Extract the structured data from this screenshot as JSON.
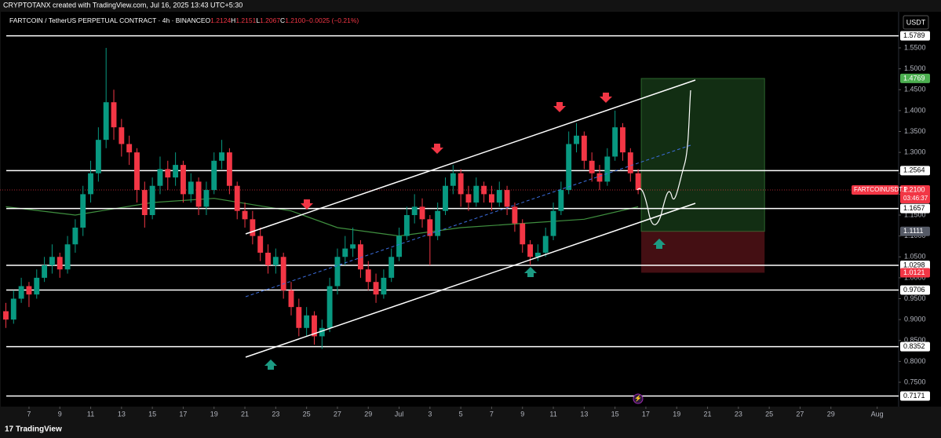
{
  "chart_data": {
    "type": "candlestick",
    "attribution": "CRYPTOTANX created with TradingView.com, Jul 16, 2025 13:43 UTC+5:30",
    "title": "FARTCOIN / TetherUS PERPETUAL CONTRACT · 4h · BINANCE",
    "readout": [
      {
        "key": "O",
        "value": 1.2124
      },
      {
        "key": "H",
        "value": 1.2151
      },
      {
        "key": "L",
        "value": 1.2067
      },
      {
        "key": "C",
        "value": 1.21,
        "value_label": "1.2100"
      },
      {
        "value": -0.0025,
        "value_label": "−0.0025 (−0.21%)"
      }
    ],
    "currency": "USDT",
    "logo": "TradingView",
    "up_color": "#089981",
    "down_color": "#f23645",
    "xlim": [
      -1.88,
      56.39
    ],
    "ylim": [
      0.6918,
      1.6364
    ],
    "xticks": [
      {
        "value": 0,
        "label": "7"
      },
      {
        "value": 2,
        "label": "9"
      },
      {
        "value": 4,
        "label": "11"
      },
      {
        "value": 6,
        "label": "13"
      },
      {
        "value": 8,
        "label": "15"
      },
      {
        "value": 10,
        "label": "17"
      },
      {
        "value": 12,
        "label": "19"
      },
      {
        "value": 14,
        "label": "21"
      },
      {
        "value": 16,
        "label": "23"
      },
      {
        "value": 18,
        "label": "25"
      },
      {
        "value": 20,
        "label": "27"
      },
      {
        "value": 22,
        "label": "29"
      },
      {
        "value": 24,
        "label": "Jul"
      },
      {
        "value": 26,
        "label": "3"
      },
      {
        "value": 28,
        "label": "5"
      },
      {
        "value": 30,
        "label": "7"
      },
      {
        "value": 32,
        "label": "9"
      },
      {
        "value": 34,
        "label": "11"
      },
      {
        "value": 36,
        "label": "13"
      },
      {
        "value": 38,
        "label": "15"
      },
      {
        "value": 40,
        "label": "17"
      },
      {
        "value": 42,
        "label": "19"
      },
      {
        "value": 44,
        "label": "21"
      },
      {
        "value": 46,
        "label": "23"
      },
      {
        "value": 48,
        "label": "25"
      },
      {
        "value": 50,
        "label": "27"
      },
      {
        "value": 52,
        "label": "29"
      },
      {
        "value": 55,
        "label": "Aug"
      }
    ],
    "yticks": [
      {
        "value": 0.75,
        "label": "0.7500"
      },
      {
        "value": 0.8,
        "label": "0.8000"
      },
      {
        "value": 0.85,
        "label": "0.8500"
      },
      {
        "value": 0.9,
        "label": "0.9000"
      },
      {
        "value": 0.95,
        "label": "0.9500"
      },
      {
        "value": 1.0,
        "label": "1.0000"
      },
      {
        "value": 1.05,
        "label": "1.0500"
      },
      {
        "value": 1.1,
        "label": "1.1000"
      },
      {
        "value": 1.15,
        "label": "1.1500"
      },
      {
        "value": 1.2,
        "label": "1.2000"
      },
      {
        "value": 1.25,
        "label": "1.2500"
      },
      {
        "value": 1.3,
        "label": "1.3000"
      },
      {
        "value": 1.35,
        "label": "1.3500"
      },
      {
        "value": 1.4,
        "label": "1.4000"
      },
      {
        "value": 1.45,
        "label": "1.4500"
      },
      {
        "value": 1.5,
        "label": "1.5000"
      },
      {
        "value": 1.55,
        "label": "1.5500"
      }
    ],
    "candles": {
      "x": [
        -1.5,
        -1,
        -0.5,
        0,
        0.5,
        1,
        1.5,
        2,
        2.5,
        3,
        3.5,
        4,
        4.5,
        5,
        5.5,
        6,
        6.5,
        7,
        7.5,
        8,
        8.5,
        9,
        9.5,
        10,
        10.5,
        11,
        11.5,
        12,
        12.5,
        13,
        13.5,
        14,
        14.5,
        15,
        15.5,
        16,
        16.5,
        17,
        17.5,
        18,
        18.5,
        19,
        19.5,
        20,
        20.5,
        21,
        21.5,
        22,
        22.5,
        23,
        23.5,
        24,
        24.5,
        25,
        25.5,
        26,
        26.5,
        27,
        27.5,
        28,
        28.5,
        29,
        29.5,
        30,
        30.5,
        31,
        31.5,
        32,
        32.5,
        33,
        33.5,
        34,
        34.5,
        35,
        35.5,
        36,
        36.5,
        37,
        37.5,
        38,
        38.5,
        39,
        39.5
      ],
      "open": [
        0.92,
        0.9,
        0.95,
        0.98,
        0.96,
        1.0,
        1.03,
        1.05,
        1.02,
        1.08,
        1.12,
        1.2,
        1.25,
        1.33,
        1.42,
        1.36,
        1.32,
        1.3,
        1.21,
        1.15,
        1.22,
        1.26,
        1.24,
        1.27,
        1.2,
        1.23,
        1.17,
        1.21,
        1.28,
        1.3,
        1.22,
        1.16,
        1.14,
        1.1,
        1.06,
        1.03,
        1.05,
        0.97,
        0.93,
        0.88,
        0.91,
        0.86,
        0.88,
        0.98,
        1.05,
        1.07,
        1.08,
        1.02,
        0.99,
        0.96,
        1.0,
        1.05,
        1.1,
        1.15,
        1.17,
        1.14,
        1.1,
        1.16,
        1.22,
        1.25,
        1.2,
        1.18,
        1.22,
        1.2,
        1.18,
        1.21,
        1.17,
        1.13,
        1.08,
        1.05,
        1.06,
        1.1,
        1.16,
        1.21,
        1.32,
        1.34,
        1.28,
        1.25,
        1.23,
        1.29,
        1.36,
        1.3,
        1.25
      ],
      "high": [
        0.94,
        0.97,
        1.0,
        0.99,
        1.02,
        1.05,
        1.08,
        1.06,
        1.1,
        1.14,
        1.22,
        1.28,
        1.36,
        1.55,
        1.45,
        1.38,
        1.34,
        1.31,
        1.23,
        1.24,
        1.29,
        1.28,
        1.3,
        1.28,
        1.25,
        1.24,
        1.23,
        1.3,
        1.33,
        1.31,
        1.23,
        1.18,
        1.16,
        1.12,
        1.08,
        1.07,
        1.06,
        0.99,
        0.95,
        0.93,
        0.92,
        0.9,
        1.0,
        1.07,
        1.1,
        1.12,
        1.09,
        1.04,
        1.01,
        1.02,
        1.07,
        1.12,
        1.17,
        1.2,
        1.19,
        1.15,
        1.18,
        1.24,
        1.27,
        1.26,
        1.22,
        1.24,
        1.23,
        1.22,
        1.23,
        1.22,
        1.18,
        1.14,
        1.09,
        1.08,
        1.12,
        1.18,
        1.23,
        1.35,
        1.37,
        1.35,
        1.3,
        1.27,
        1.31,
        1.4,
        1.37,
        1.31,
        1.26
      ],
      "low": [
        0.88,
        0.89,
        0.94,
        0.93,
        0.95,
        0.99,
        1.01,
        1.0,
        1.01,
        1.06,
        1.1,
        1.18,
        1.23,
        1.31,
        1.33,
        1.29,
        1.27,
        1.18,
        1.12,
        1.14,
        1.2,
        1.21,
        1.22,
        1.18,
        1.18,
        1.15,
        1.15,
        1.2,
        1.26,
        1.2,
        1.14,
        1.12,
        1.08,
        1.04,
        1.01,
        1.01,
        0.95,
        0.91,
        0.86,
        0.86,
        0.84,
        0.83,
        0.87,
        0.96,
        1.03,
        1.05,
        1.0,
        0.97,
        0.94,
        0.95,
        0.99,
        1.04,
        1.09,
        1.13,
        1.12,
        1.03,
        1.09,
        1.15,
        1.2,
        1.17,
        1.16,
        1.17,
        1.18,
        1.16,
        1.17,
        1.15,
        1.11,
        1.06,
        1.03,
        1.04,
        1.05,
        1.09,
        1.15,
        1.2,
        1.3,
        1.26,
        1.23,
        1.21,
        1.22,
        1.28,
        1.28,
        1.23,
        1.2
      ],
      "close": [
        0.9,
        0.95,
        0.98,
        0.96,
        1.0,
        1.03,
        1.05,
        1.02,
        1.08,
        1.12,
        1.2,
        1.25,
        1.33,
        1.42,
        1.36,
        1.32,
        1.3,
        1.21,
        1.15,
        1.22,
        1.26,
        1.24,
        1.27,
        1.2,
        1.23,
        1.17,
        1.21,
        1.28,
        1.3,
        1.22,
        1.16,
        1.14,
        1.1,
        1.06,
        1.03,
        1.05,
        0.97,
        0.93,
        0.88,
        0.91,
        0.86,
        0.88,
        0.98,
        1.05,
        1.07,
        1.08,
        1.02,
        0.99,
        0.96,
        1.0,
        1.05,
        1.1,
        1.15,
        1.17,
        1.14,
        1.1,
        1.16,
        1.22,
        1.25,
        1.2,
        1.18,
        1.22,
        1.2,
        1.18,
        1.21,
        1.17,
        1.13,
        1.08,
        1.05,
        1.06,
        1.1,
        1.16,
        1.21,
        1.32,
        1.34,
        1.28,
        1.25,
        1.23,
        1.29,
        1.36,
        1.3,
        1.25,
        1.21
      ]
    },
    "moving_average": {
      "color": "#3f8f3f",
      "x": [
        -1.5,
        3,
        8,
        12,
        17,
        20,
        24,
        28,
        32,
        36,
        39.5
      ],
      "values": [
        1.17,
        1.15,
        1.18,
        1.19,
        1.16,
        1.12,
        1.1,
        1.12,
        1.13,
        1.14,
        1.17
      ]
    },
    "levels": [
      1.5789,
      1.2564,
      1.1657,
      1.0298,
      0.9706,
      0.8352,
      0.7171
    ],
    "last_price": {
      "symbol": "FARTCOINUSDT.P",
      "value": 1.21,
      "label": "1.2100",
      "countdown": "03:46:37"
    },
    "position": {
      "x": [
        39.7,
        47.7
      ],
      "target": 1.4769,
      "entry": 1.1111,
      "stop": 1.0121
    }
  }
}
